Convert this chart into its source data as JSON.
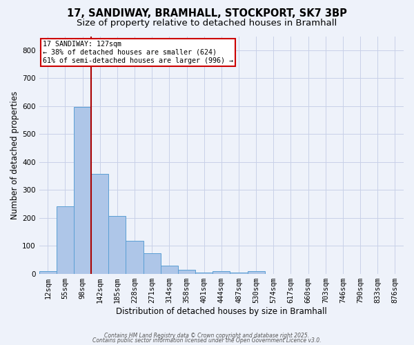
{
  "title_line1": "17, SANDIWAY, BRAMHALL, STOCKPORT, SK7 3BP",
  "title_line2": "Size of property relative to detached houses in Bramhall",
  "xlabel": "Distribution of detached houses by size in Bramhall",
  "ylabel": "Number of detached properties",
  "categories": [
    "12sqm",
    "55sqm",
    "98sqm",
    "142sqm",
    "185sqm",
    "228sqm",
    "271sqm",
    "314sqm",
    "358sqm",
    "401sqm",
    "444sqm",
    "487sqm",
    "530sqm",
    "574sqm",
    "617sqm",
    "660sqm",
    "703sqm",
    "746sqm",
    "790sqm",
    "833sqm",
    "876sqm"
  ],
  "values": [
    8,
    240,
    597,
    357,
    206,
    118,
    72,
    28,
    15,
    5,
    10,
    5,
    8,
    0,
    0,
    0,
    0,
    0,
    0,
    0,
    0
  ],
  "bar_color": "#aec6e8",
  "bar_edge_color": "#5a9fd4",
  "ylim": [
    0,
    850
  ],
  "yticks": [
    0,
    100,
    200,
    300,
    400,
    500,
    600,
    700,
    800
  ],
  "vline_color": "#aa0000",
  "annotation_line1": "17 SANDIWAY: 127sqm",
  "annotation_line2": "← 38% of detached houses are smaller (624)",
  "annotation_line3": "61% of semi-detached houses are larger (996) →",
  "annotation_box_color": "#cc0000",
  "background_color": "#eef2fa",
  "grid_color": "#c8d0e8",
  "footer_line1": "Contains HM Land Registry data © Crown copyright and database right 2025.",
  "footer_line2": "Contains public sector information licensed under the Open Government Licence v3.0.",
  "title_fontsize": 10.5,
  "subtitle_fontsize": 9.5,
  "xlabel_fontsize": 8.5,
  "ylabel_fontsize": 8.5,
  "tick_fontsize": 7.5,
  "footer_fontsize": 5.5
}
